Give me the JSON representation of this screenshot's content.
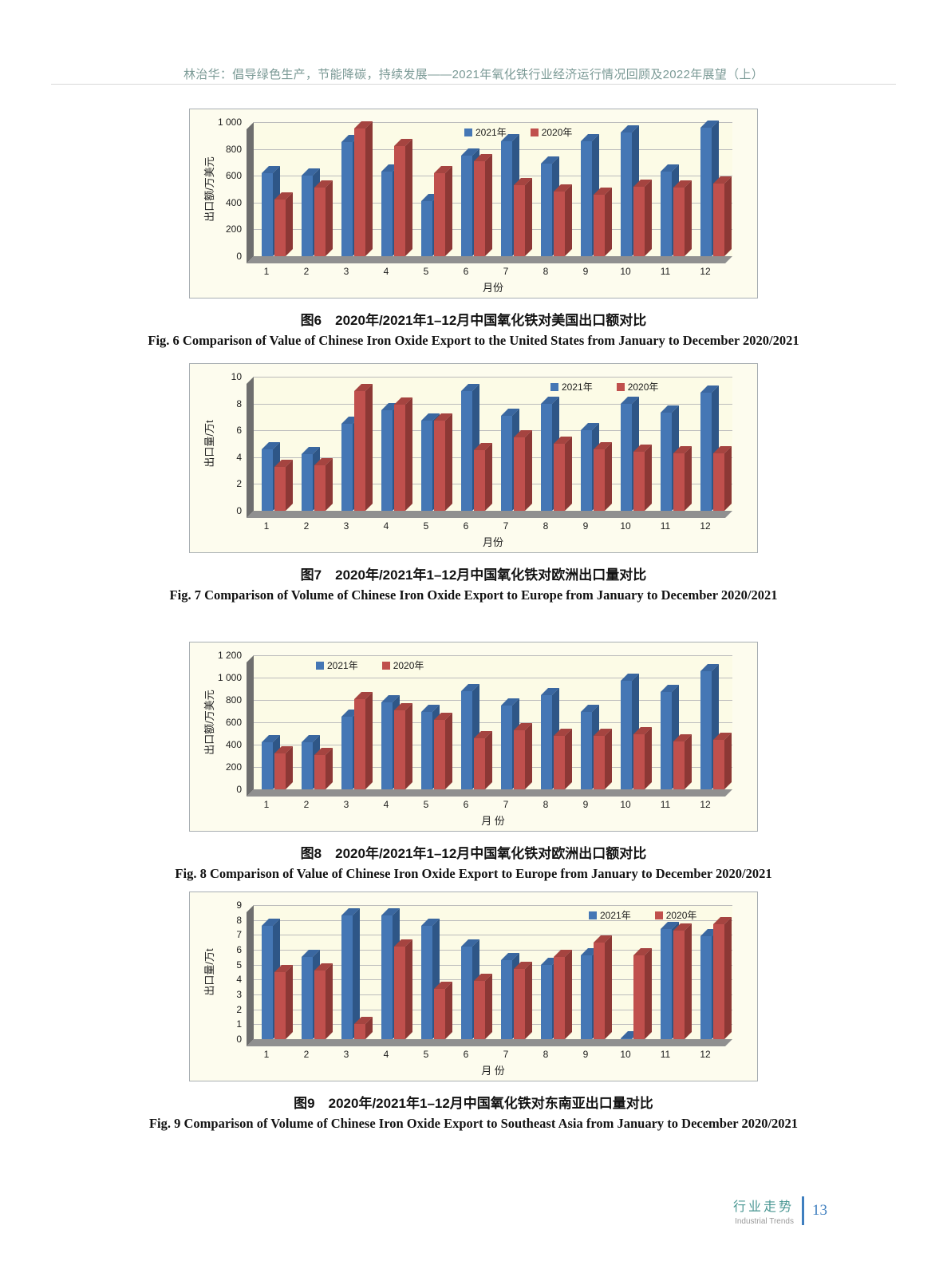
{
  "page": {
    "header": "林治华：倡导绿色生产，节能降碳，持续发展——2021年氧化铁行业经济运行情况回顾及2022年展望（上）",
    "footer": {
      "cn": "行业走势",
      "en": "Industrial Trends",
      "page_number": "13"
    }
  },
  "figures": [
    {
      "caption_cn": "图6　2020年/2021年1–12月中国氧化铁对美国出口额对比",
      "caption_en": "Fig. 6   Comparison of Value of Chinese Iron Oxide Export to the United States from January to December 2020/2021"
    },
    {
      "caption_cn": "图7　2020年/2021年1–12月中国氧化铁对欧洲出口量对比",
      "caption_en": "Fig. 7   Comparison of Volume of Chinese Iron Oxide Export to Europe from January to December 2020/2021"
    },
    {
      "caption_cn": "图8　2020年/2021年1–12月中国氧化铁对欧洲出口额对比",
      "caption_en": "Fig. 8   Comparison of Value of Chinese Iron Oxide Export to Europe from January to December 2020/2021"
    },
    {
      "caption_cn": "图9　2020年/2021年1–12月中国氧化铁对东南亚出口量对比",
      "caption_en": "Fig. 9   Comparison of Volume of Chinese Iron Oxide Export to Southeast Asia from January to December 2020/2021"
    }
  ],
  "chart_data": [
    {
      "type": "bar",
      "title": "图6 2020年/2021年1–12月中国氧化铁对美国出口额对比",
      "categories": [
        "1",
        "2",
        "3",
        "4",
        "5",
        "6",
        "7",
        "8",
        "9",
        "10",
        "11",
        "12"
      ],
      "series": [
        {
          "name": "2021年",
          "color": "#4577B5",
          "color_side": "#2E5687",
          "color_top": "#3A67A0",
          "values": [
            620,
            600,
            850,
            630,
            410,
            750,
            860,
            690,
            860,
            920,
            630,
            960
          ]
        },
        {
          "name": "2020年",
          "color": "#C0504D",
          "color_side": "#8C3835",
          "color_top": "#A54440",
          "values": [
            420,
            510,
            950,
            820,
            620,
            710,
            530,
            480,
            460,
            520,
            510,
            540
          ]
        }
      ],
      "xlabel": "月份",
      "ylabel": "出口额/万美元",
      "ylim": [
        0,
        1000
      ],
      "yticks": [
        0,
        200,
        400,
        600,
        800,
        1000
      ],
      "ytick_labels": [
        "0",
        "200",
        "400",
        "600",
        "800",
        "1 000"
      ],
      "grid": true,
      "legend_position": "top-center",
      "legend_x_pct": 0.44,
      "plot_bg": "#fcfbe6"
    },
    {
      "type": "bar",
      "title": "图7 2020年/2021年1–12月中国氧化铁对欧洲出口量对比",
      "categories": [
        "1",
        "2",
        "3",
        "4",
        "5",
        "6",
        "7",
        "8",
        "9",
        "10",
        "11",
        "12"
      ],
      "series": [
        {
          "name": "2021年",
          "color": "#4577B5",
          "color_side": "#2E5687",
          "color_top": "#3A67A0",
          "values": [
            4.6,
            4.2,
            6.5,
            7.5,
            6.7,
            8.9,
            7.1,
            8.0,
            6.0,
            8.0,
            7.3,
            8.8
          ]
        },
        {
          "name": "2020年",
          "color": "#C0504D",
          "color_side": "#8C3835",
          "color_top": "#A54440",
          "values": [
            3.3,
            3.4,
            8.9,
            7.9,
            6.7,
            4.5,
            5.5,
            5.0,
            4.6,
            4.4,
            4.3,
            4.3
          ]
        }
      ],
      "xlabel": "月份",
      "ylabel": "出口量/万t",
      "ylim": [
        0,
        10
      ],
      "yticks": [
        0,
        2,
        4,
        6,
        8,
        10
      ],
      "ytick_labels": [
        "0",
        "2",
        "4",
        "6",
        "8",
        "10"
      ],
      "grid": true,
      "legend_position": "top-right",
      "legend_x_pct": 0.62,
      "plot_bg": "#fcfbe6"
    },
    {
      "type": "bar",
      "title": "图8 2020年/2021年1–12月中国氧化铁对欧洲出口额对比",
      "categories": [
        "1",
        "2",
        "3",
        "4",
        "5",
        "6",
        "7",
        "8",
        "9",
        "10",
        "11",
        "12"
      ],
      "series": [
        {
          "name": "2021年",
          "color": "#4577B5",
          "color_side": "#2E5687",
          "color_top": "#3A67A0",
          "values": [
            420,
            420,
            650,
            780,
            690,
            880,
            750,
            840,
            690,
            970,
            870,
            1060
          ]
        },
        {
          "name": "2020年",
          "color": "#C0504D",
          "color_side": "#8C3835",
          "color_top": "#A54440",
          "values": [
            320,
            310,
            810,
            710,
            620,
            460,
            530,
            480,
            480,
            490,
            430,
            440
          ]
        }
      ],
      "xlabel": "月 份",
      "ylabel": "出口额/万美元",
      "ylim": [
        0,
        1200
      ],
      "yticks": [
        0,
        200,
        400,
        600,
        800,
        1000,
        1200
      ],
      "ytick_labels": [
        "0",
        "200",
        "400",
        "600",
        "800",
        "1 000",
        "1 200"
      ],
      "grid": true,
      "legend_position": "top-left",
      "legend_x_pct": 0.13,
      "plot_bg": "#fcfbe6"
    },
    {
      "type": "bar",
      "title": "图9 2020年/2021年1–12月中国氧化铁对东南亚出口量对比",
      "categories": [
        "1",
        "2",
        "3",
        "4",
        "5",
        "6",
        "7",
        "8",
        "9",
        "10",
        "11",
        "12"
      ],
      "series": [
        {
          "name": "2021年",
          "color": "#4577B5",
          "color_side": "#2E5687",
          "color_top": "#3A67A0",
          "values": [
            7.6,
            5.5,
            8.3,
            8.3,
            7.6,
            6.2,
            5.3,
            5.0,
            5.6,
            0.05,
            7.4,
            6.9
          ]
        },
        {
          "name": "2020年",
          "color": "#C0504D",
          "color_side": "#8C3835",
          "color_top": "#A54440",
          "values": [
            4.5,
            4.6,
            1.0,
            6.2,
            3.4,
            3.9,
            4.7,
            5.5,
            6.5,
            5.6,
            7.3,
            7.7
          ]
        }
      ],
      "xlabel": "月 份",
      "ylabel": "出口量/万t",
      "ylim": [
        0,
        9
      ],
      "yticks": [
        0,
        1,
        2,
        3,
        4,
        5,
        6,
        7,
        8,
        9
      ],
      "ytick_labels": [
        "0",
        "1",
        "2",
        "3",
        "4",
        "5",
        "6",
        "7",
        "8",
        "9"
      ],
      "grid": true,
      "legend_position": "top-right",
      "legend_x_pct": 0.7,
      "plot_bg": "#fcfbe6"
    }
  ]
}
